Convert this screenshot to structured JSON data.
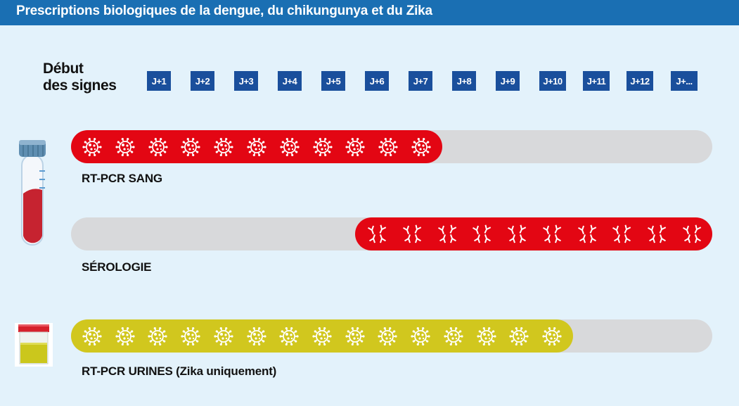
{
  "header": {
    "title": "Prescriptions biologiques de la dengue, du chikungunya et du Zika"
  },
  "timeline": {
    "start_label_line1": "Début",
    "start_label_line2": "des signes",
    "days": [
      "J+1",
      "J+2",
      "J+3",
      "J+4",
      "J+5",
      "J+6",
      "J+7",
      "J+8",
      "J+9",
      "J+10",
      "J+11",
      "J+12",
      "J+..."
    ]
  },
  "rows": [
    {
      "label": "RT-PCR SANG",
      "color": "#e30613",
      "icon": "virus-icon",
      "start_day": 0,
      "end_day": 7,
      "icon_count": 11
    },
    {
      "label": "SÉROLOGIE",
      "color": "#e30613",
      "icon": "antibody-icon",
      "start_day": 5,
      "end_day": 13,
      "icon_count": 10
    },
    {
      "label": "RT-PCR URINES (Zika uniquement)",
      "color": "#d1c71e",
      "icon": "virus-icon",
      "start_day": 0,
      "end_day": 10,
      "icon_count": 15
    }
  ],
  "colors": {
    "header": "#1a6fb3",
    "day_badge": "#1a4f9c",
    "track": "#d8d9db",
    "background": "#e3f2fb"
  }
}
